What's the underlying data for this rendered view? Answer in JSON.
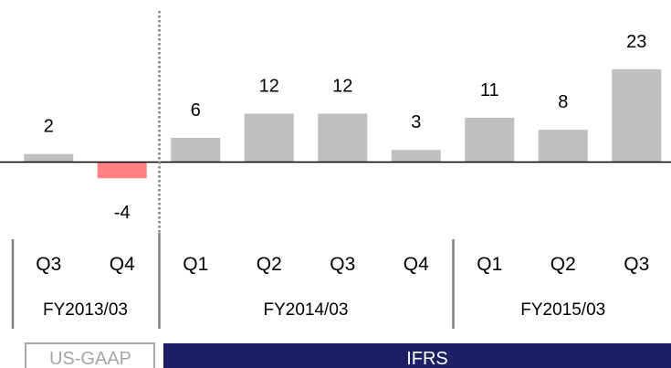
{
  "chart_data": {
    "type": "bar",
    "title": "",
    "xlabel": "",
    "ylabel": "",
    "categories": [
      "Q3",
      "Q4",
      "Q1",
      "Q2",
      "Q3",
      "Q4",
      "Q1",
      "Q2",
      "Q3"
    ],
    "values": [
      2,
      -4,
      6,
      12,
      12,
      3,
      11,
      8,
      23
    ],
    "data_labels": [
      "2",
      "-4",
      "6",
      "12",
      "12",
      "3",
      "11",
      "8",
      "23"
    ],
    "ylim": [
      -4.2,
      25
    ],
    "grid": false,
    "legend": "none",
    "fiscal_years": [
      {
        "label": "FY2013/03",
        "start": 0,
        "count": 2
      },
      {
        "label": "FY2014/03",
        "start": 2,
        "count": 4
      },
      {
        "label": "FY2015/03",
        "start": 6,
        "count": 3
      }
    ],
    "accounting_standards": [
      {
        "label": "US-GAAP",
        "start": 0,
        "count": 2,
        "style": "outline"
      },
      {
        "label": "IFRS",
        "start": 2,
        "count": 7,
        "style": "filled"
      }
    ]
  },
  "colors": {
    "positive_bar": "#bfbfbf",
    "negative_bar": "#ff8080",
    "axis": "#000000",
    "separator": "#808080",
    "ifrs_fill": "#1f1f66",
    "ifrs_text": "#ffffff",
    "usgaap_border": "#a6a6a6",
    "usgaap_text": "#a6a6a6"
  }
}
